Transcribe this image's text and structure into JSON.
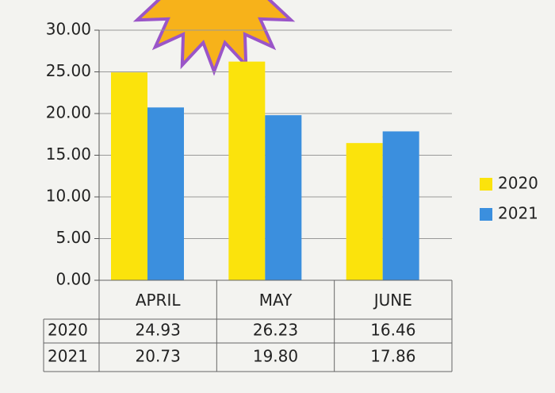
{
  "chart_data": {
    "type": "bar",
    "categories": [
      "APRIL",
      "MAY",
      "JUNE"
    ],
    "series": [
      {
        "name": "2020",
        "color": "#fbe30c",
        "values": [
          24.93,
          26.23,
          16.46
        ],
        "value_labels": [
          "24.93",
          "26.23",
          "16.46"
        ]
      },
      {
        "name": "2021",
        "color": "#3b8fde",
        "values": [
          20.73,
          19.8,
          17.86
        ],
        "value_labels": [
          "20.73",
          "19.80",
          "17.86"
        ]
      }
    ],
    "ylim": [
      0,
      30
    ],
    "yticks": [
      {
        "value": 0,
        "label": "0.00"
      },
      {
        "value": 5,
        "label": "5.00"
      },
      {
        "value": 10,
        "label": "10.00"
      },
      {
        "value": 15,
        "label": "15.00"
      },
      {
        "value": 20,
        "label": "20.00"
      },
      {
        "value": 25,
        "label": "25.00"
      },
      {
        "value": 30,
        "label": "30.00"
      }
    ],
    "grid": true,
    "legend": "right"
  }
}
